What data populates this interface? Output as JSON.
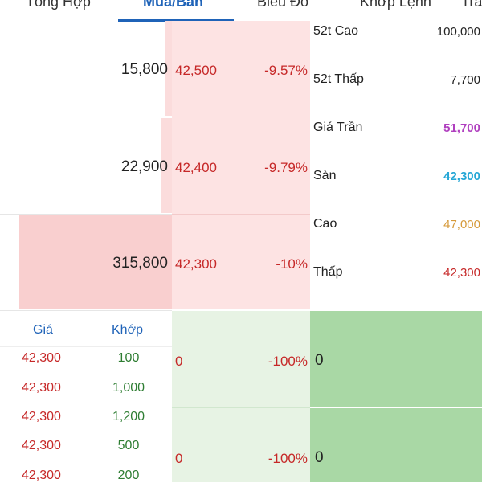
{
  "tabs": [
    {
      "label": "Tổng Hợp"
    },
    {
      "label": "Mua/Bán"
    },
    {
      "label": "Biểu Đồ"
    },
    {
      "label": "Khớp Lệnh"
    },
    {
      "label": "Tra"
    }
  ],
  "ask_rows": [
    {
      "volume": "15,800",
      "price": "42,500",
      "change": "-9.57%"
    },
    {
      "volume": "22,900",
      "price": "42,400",
      "change": "-9.79%"
    },
    {
      "volume": "315,800",
      "price": "42,300",
      "change": "-10%"
    }
  ],
  "info": [
    {
      "label": "52t Cao",
      "value": "100,000",
      "color": "#222222"
    },
    {
      "label": "52t Thấp",
      "value": "7,700",
      "color": "#222222"
    },
    {
      "label": "Giá Trần",
      "value": "51,700",
      "color": "#b03fbf"
    },
    {
      "label": "Sàn",
      "value": "42,300",
      "color": "#26a7d6"
    },
    {
      "label": "Cao",
      "value": "47,000",
      "color": "#d69a3a"
    },
    {
      "label": "Thấp",
      "value": "42,300",
      "color": "#c62828"
    }
  ],
  "trades": {
    "header_price": "Giá",
    "header_volume": "Khớp",
    "rows": [
      {
        "price": "42,300",
        "volume": "100"
      },
      {
        "price": "42,300",
        "volume": "1,000"
      },
      {
        "price": "42,300",
        "volume": "1,200"
      },
      {
        "price": "42,300",
        "volume": "500"
      },
      {
        "price": "42,300",
        "volume": "200"
      }
    ]
  },
  "bid_rows": [
    {
      "price": "0",
      "change": "-100%",
      "volume": "0"
    },
    {
      "price": "0",
      "change": "-100%",
      "volume": "0"
    }
  ]
}
